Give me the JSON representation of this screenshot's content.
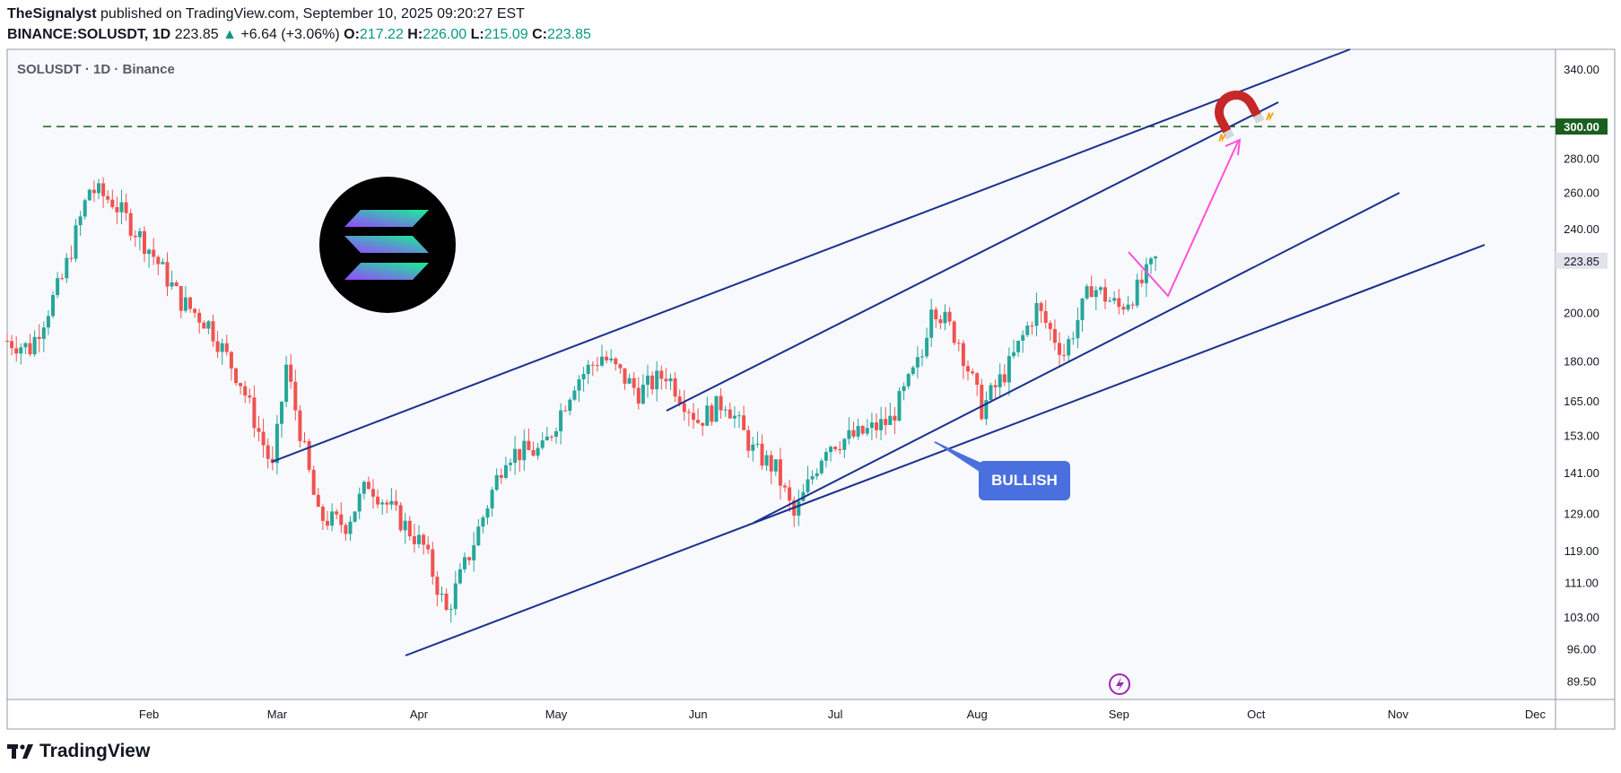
{
  "header": {
    "author": "TheSignalyst",
    "published": " published on TradingView.com, September 10, 2025 09:20:27 EST",
    "symbol": "BINANCE:SOLUSDT, 1D",
    "last": "223.85",
    "change": "+6.64 (+3.06%)",
    "o_label": "O:",
    "o": "217.22",
    "h_label": "H:",
    "h": "226.00",
    "l_label": "L:",
    "l": "215.09",
    "c_label": "C:",
    "c": "223.85"
  },
  "footer": {
    "brand": "TradingView"
  },
  "colors": {
    "up": "#26a69a",
    "down": "#ef5350",
    "trend": "#1a2f8f",
    "target": "#1b5e20",
    "arrow": "#ff4fd8",
    "callout": "#4a6fde"
  },
  "chart_data": {
    "type": "candlestick",
    "title": "SOLUSDT · 1D · Binance",
    "scale": "log",
    "ylim": [
      86,
      355
    ],
    "y_ticks": [
      340,
      300,
      280,
      260,
      240,
      223.85,
      200,
      180,
      165,
      153,
      141,
      129,
      119,
      111,
      103,
      96,
      89.5
    ],
    "y_tick_labels": [
      "340.00",
      "300.00",
      "280.00",
      "260.00",
      "240.00",
      "223.85",
      "200.00",
      "180.00",
      "165.00",
      "153.00",
      "141.00",
      "129.00",
      "119.00",
      "111.00",
      "103.00",
      "96.00",
      "89.50"
    ],
    "x_labels": [
      "Feb",
      "Mar",
      "Apr",
      "May",
      "Jun",
      "Jul",
      "Aug",
      "Sep",
      "Oct",
      "Nov",
      "Dec"
    ],
    "x_label_dates": [
      "2025-02-01",
      "2025-03-01",
      "2025-04-01",
      "2025-05-01",
      "2025-06-01",
      "2025-07-01",
      "2025-08-01",
      "2025-09-01",
      "2025-10-01",
      "2025-11-01",
      "2025-12-01"
    ],
    "current_price": 223.85,
    "target_price": 300.0,
    "target_label": "300.00",
    "annotation": "BULLISH",
    "candle_anchors": {
      "dates": [
        "2025-01-01",
        "2025-01-06",
        "2025-01-13",
        "2025-01-19",
        "2025-01-24",
        "2025-02-01",
        "2025-02-08",
        "2025-02-14",
        "2025-02-21",
        "2025-02-28",
        "2025-03-03",
        "2025-03-10",
        "2025-03-16",
        "2025-03-21",
        "2025-03-28",
        "2025-04-02",
        "2025-04-07",
        "2025-04-12",
        "2025-04-20",
        "2025-04-28",
        "2025-05-05",
        "2025-05-11",
        "2025-05-19",
        "2025-05-25",
        "2025-06-01",
        "2025-06-07",
        "2025-06-13",
        "2025-06-18",
        "2025-06-22",
        "2025-06-29",
        "2025-07-06",
        "2025-07-13",
        "2025-07-20",
        "2025-07-22",
        "2025-07-28",
        "2025-08-02",
        "2025-08-08",
        "2025-08-14",
        "2025-08-20",
        "2025-08-26",
        "2025-09-01",
        "2025-09-05",
        "2025-09-09"
      ],
      "close": [
        188,
        185,
        215,
        262,
        255,
        230,
        205,
        195,
        172,
        142,
        178,
        128,
        126,
        138,
        127,
        120,
        104,
        118,
        147,
        148,
        172,
        182,
        168,
        175,
        158,
        165,
        148,
        142,
        128,
        150,
        153,
        158,
        182,
        205,
        188,
        162,
        178,
        202,
        183,
        212,
        202,
        210,
        224
      ]
    }
  }
}
